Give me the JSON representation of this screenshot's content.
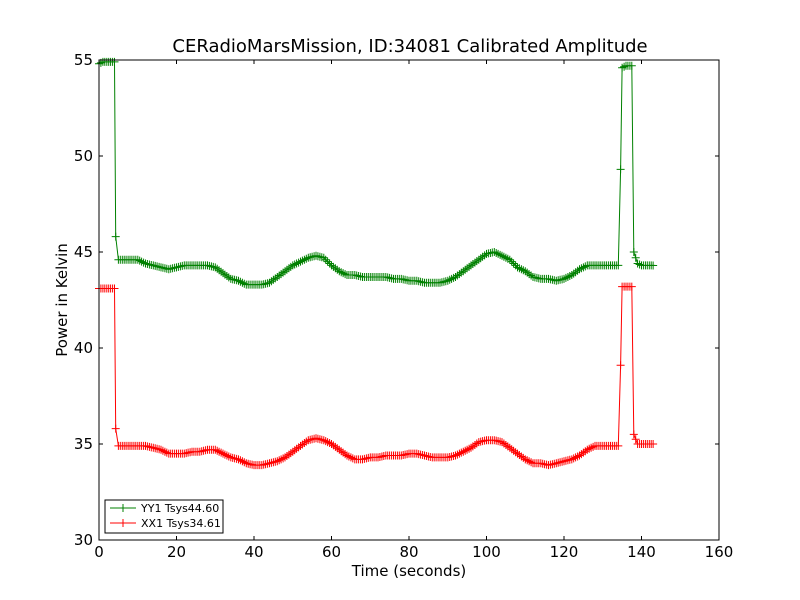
{
  "colors": {
    "yy1": "#008000",
    "xx1": "#ff0000",
    "axes": "#000000",
    "background": "#ffffff"
  },
  "chart_data": {
    "type": "line",
    "title": "CERadioMarsMission, ID:34081 Calibrated Amplitude",
    "xlabel": "Time (seconds)",
    "ylabel": "Power in Kelvin",
    "xlim": [
      0,
      160
    ],
    "ylim": [
      30,
      55
    ],
    "xticks": [
      "0",
      "20",
      "40",
      "60",
      "80",
      "100",
      "120",
      "140",
      "160"
    ],
    "yticks": [
      "30",
      "35",
      "40",
      "45",
      "50",
      "55"
    ],
    "grid": false,
    "legend_position": "lower-left",
    "marker": "+",
    "series": [
      {
        "name": "YY1 Tsys44.60",
        "color": "#008000",
        "x": [
          0,
          1,
          2,
          3,
          4,
          4.3,
          5,
          6,
          8,
          10,
          12,
          14,
          16,
          18,
          20,
          22,
          24,
          26,
          28,
          30,
          32,
          34,
          36,
          38,
          40,
          42,
          44,
          46,
          48,
          50,
          52,
          54,
          56,
          58,
          60,
          62,
          64,
          66,
          68,
          70,
          72,
          74,
          76,
          78,
          80,
          82,
          84,
          86,
          88,
          90,
          92,
          94,
          96,
          98,
          100,
          102,
          104,
          106,
          108,
          110,
          112,
          114,
          116,
          118,
          120,
          122,
          124,
          126,
          128,
          130,
          132,
          134,
          134.6,
          135,
          136,
          137,
          137.5,
          138,
          139,
          140,
          141,
          142,
          143
        ],
        "y": [
          54.8,
          54.9,
          54.9,
          54.9,
          54.9,
          45.8,
          44.6,
          44.6,
          44.6,
          44.6,
          44.4,
          44.3,
          44.2,
          44.1,
          44.2,
          44.3,
          44.3,
          44.3,
          44.3,
          44.2,
          43.9,
          43.6,
          43.5,
          43.3,
          43.3,
          43.3,
          43.4,
          43.7,
          44.0,
          44.3,
          44.5,
          44.7,
          44.8,
          44.7,
          44.3,
          44.0,
          43.8,
          43.8,
          43.7,
          43.7,
          43.7,
          43.7,
          43.6,
          43.6,
          43.5,
          43.5,
          43.4,
          43.4,
          43.4,
          43.5,
          43.7,
          44.0,
          44.3,
          44.6,
          44.9,
          45.0,
          44.8,
          44.6,
          44.2,
          44.0,
          43.7,
          43.6,
          43.6,
          43.5,
          43.6,
          43.8,
          44.1,
          44.3,
          44.3,
          44.3,
          44.3,
          44.3,
          49.3,
          54.6,
          54.7,
          54.7,
          54.7,
          45.0,
          44.4,
          44.3,
          44.3,
          44.3,
          44.3
        ]
      },
      {
        "name": "XX1 Tsys34.61",
        "color": "#ff0000",
        "x": [
          0,
          1,
          2,
          3,
          4,
          4.3,
          5,
          6,
          8,
          10,
          12,
          14,
          16,
          18,
          20,
          22,
          24,
          26,
          28,
          30,
          32,
          34,
          36,
          38,
          40,
          42,
          44,
          46,
          48,
          50,
          52,
          54,
          56,
          58,
          60,
          62,
          64,
          66,
          68,
          70,
          72,
          74,
          76,
          78,
          80,
          82,
          84,
          86,
          88,
          90,
          92,
          94,
          96,
          98,
          100,
          102,
          104,
          106,
          108,
          110,
          112,
          114,
          116,
          118,
          120,
          122,
          124,
          126,
          128,
          130,
          132,
          134,
          134.6,
          135,
          136,
          137,
          137.5,
          138,
          139,
          140,
          141,
          142,
          143
        ],
        "y": [
          43.1,
          43.1,
          43.1,
          43.1,
          43.1,
          35.8,
          34.9,
          34.9,
          34.9,
          34.9,
          34.9,
          34.8,
          34.7,
          34.5,
          34.5,
          34.5,
          34.6,
          34.6,
          34.7,
          34.7,
          34.5,
          34.3,
          34.2,
          34.0,
          33.9,
          33.9,
          34.0,
          34.1,
          34.3,
          34.6,
          34.9,
          35.2,
          35.3,
          35.2,
          35.0,
          34.7,
          34.4,
          34.2,
          34.2,
          34.3,
          34.3,
          34.4,
          34.4,
          34.4,
          34.5,
          34.5,
          34.4,
          34.3,
          34.3,
          34.3,
          34.4,
          34.6,
          34.8,
          35.1,
          35.2,
          35.2,
          35.1,
          34.8,
          34.5,
          34.2,
          34.0,
          34.0,
          33.9,
          34.0,
          34.1,
          34.2,
          34.4,
          34.7,
          34.9,
          34.9,
          34.9,
          34.9,
          39.1,
          43.2,
          43.2,
          43.2,
          43.2,
          35.5,
          35.0,
          35.0,
          35.0,
          35.0,
          35.0
        ]
      }
    ]
  }
}
